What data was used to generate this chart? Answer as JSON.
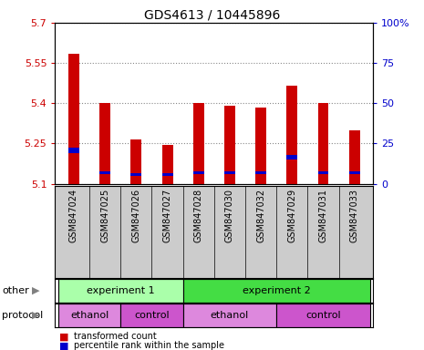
{
  "title": "GDS4613 / 10445896",
  "samples": [
    "GSM847024",
    "GSM847025",
    "GSM847026",
    "GSM847027",
    "GSM847028",
    "GSM847030",
    "GSM847032",
    "GSM847029",
    "GSM847031",
    "GSM847033"
  ],
  "red_values": [
    5.585,
    5.4,
    5.265,
    5.245,
    5.4,
    5.39,
    5.385,
    5.465,
    5.4,
    5.3
  ],
  "blue_values": [
    5.215,
    5.135,
    5.13,
    5.13,
    5.135,
    5.135,
    5.135,
    5.19,
    5.135,
    5.135
  ],
  "blue_heights": [
    0.018,
    0.01,
    0.01,
    0.01,
    0.01,
    0.01,
    0.01,
    0.018,
    0.01,
    0.01
  ],
  "y_min": 5.1,
  "y_max": 5.7,
  "y_ticks": [
    5.1,
    5.25,
    5.4,
    5.55,
    5.7
  ],
  "y_right_ticks": [
    0,
    25,
    50,
    75,
    100
  ],
  "y_right_labels": [
    "0",
    "25",
    "50",
    "75",
    "100%"
  ],
  "bar_color_red": "#cc0000",
  "bar_color_blue": "#0000cc",
  "left_axis_color": "#cc0000",
  "right_axis_color": "#0000cc",
  "experiment_colors": [
    "#aaffaa",
    "#44dd44"
  ],
  "protocol_color_ethanol": "#dd88dd",
  "protocol_color_control": "#cc55cc",
  "sample_bg_color": "#cccccc",
  "experiment1_label": "experiment 1",
  "experiment2_label": "experiment 2",
  "ethanol_label": "ethanol",
  "control_label": "control",
  "other_label": "other",
  "protocol_label": "protocol",
  "legend_red": "transformed count",
  "legend_blue": "percentile rank within the sample",
  "bar_width": 0.35,
  "experiment1_cols": [
    0,
    1,
    2,
    3
  ],
  "experiment2_cols": [
    4,
    5,
    6,
    7,
    8,
    9
  ],
  "ethanol1_cols": [
    0,
    1
  ],
  "control1_cols": [
    2,
    3
  ],
  "ethanol2_cols": [
    4,
    5,
    6
  ],
  "control2_cols": [
    7,
    8,
    9
  ]
}
